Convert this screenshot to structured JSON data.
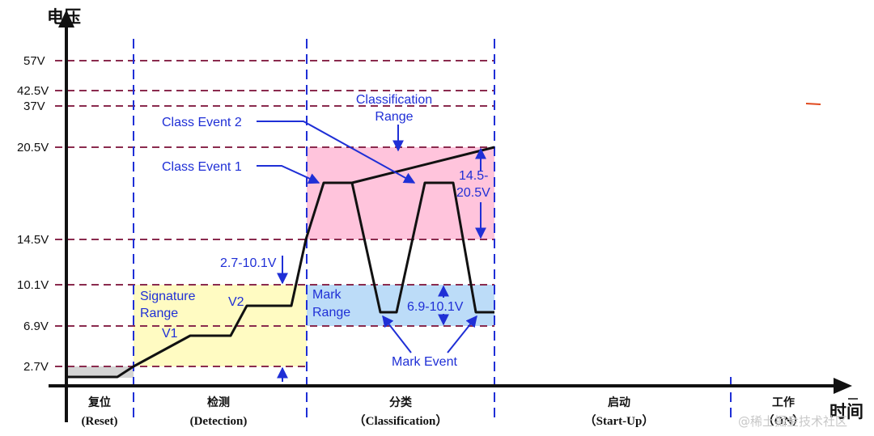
{
  "axis": {
    "y_title": "电压",
    "x_title": "时间"
  },
  "y_labels": {
    "v57": "57V",
    "v42_5": "42.5V",
    "v37": "37V",
    "v20_5": "20.5V",
    "v14_5": "14.5V",
    "v10_1": "10.1V",
    "v6_9": "6.9V",
    "v2_7": "2.7V"
  },
  "phases": {
    "reset": {
      "cn": "复位",
      "en": "(Reset)"
    },
    "detection": {
      "cn": "检测",
      "en": "(Detection)"
    },
    "classification": {
      "cn": "分类",
      "en": "（Classification）"
    },
    "startup": {
      "cn": "启动",
      "en": "（Start-Up）"
    },
    "on": {
      "cn": "工作",
      "en": "（ON）"
    }
  },
  "annotations": {
    "classification_range": [
      "Classification",
      "Range"
    ],
    "class_event_2": "Class Event 2",
    "class_event_1": "Class Event 1",
    "class_band": [
      "14.5-",
      "20.5V"
    ],
    "detect_band": "2.7-10.1V",
    "signature_range": [
      "Signature",
      "Range"
    ],
    "v1": "V1",
    "v2": "V2",
    "mark_range": [
      "Mark",
      "Range"
    ],
    "mark_band": "6.9-10.1V",
    "mark_event": "Mark Event"
  },
  "watermark": "@稀土掘金技术社区",
  "colors": {
    "axis": "#111111",
    "dashed_grid": "#8a2b4e",
    "phase_divider": "#1f2fd6",
    "annotation": "#1f2fd6",
    "reset_zone": "#d4d4d4",
    "signature_zone": "#fffbc2",
    "classification_zone": "#ffc4dc",
    "mark_zone": "#bcdcf8"
  }
}
